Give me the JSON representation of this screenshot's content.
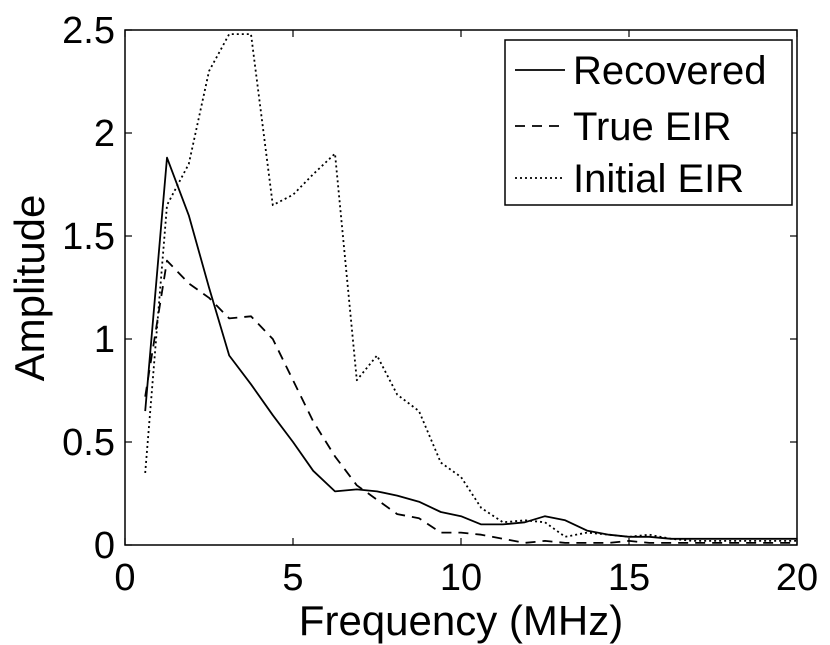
{
  "chart_data": {
    "type": "line",
    "title": "",
    "xlabel": "Frequency (MHz)",
    "ylabel": "Amplitude",
    "xlim": [
      0,
      20
    ],
    "ylim": [
      0,
      2.5
    ],
    "xticks": [
      "0",
      "5",
      "10",
      "15",
      "20"
    ],
    "yticks": [
      "0",
      "0.5",
      "1",
      "1.5",
      "2",
      "2.5"
    ],
    "grid": false,
    "legend_position": "top-right",
    "series": [
      {
        "name": "Recovered",
        "style": "solid",
        "color": "#000000",
        "x": [
          0.6,
          1.25,
          1.9,
          2.5,
          3.1,
          3.75,
          4.4,
          5.0,
          5.6,
          6.25,
          6.9,
          7.5,
          8.1,
          8.75,
          9.4,
          10.0,
          10.6,
          11.25,
          11.9,
          12.5,
          13.1,
          13.75,
          14.4,
          15.0,
          15.6,
          16.25,
          16.9,
          17.5,
          18.1,
          18.75,
          19.4,
          20.0
        ],
        "y": [
          0.65,
          1.88,
          1.6,
          1.25,
          0.92,
          0.78,
          0.63,
          0.5,
          0.36,
          0.26,
          0.27,
          0.26,
          0.24,
          0.21,
          0.16,
          0.14,
          0.1,
          0.1,
          0.11,
          0.14,
          0.12,
          0.07,
          0.05,
          0.04,
          0.04,
          0.03,
          0.03,
          0.03,
          0.03,
          0.03,
          0.03,
          0.03
        ]
      },
      {
        "name": "True EIR",
        "style": "dashed",
        "color": "#000000",
        "x": [
          0.6,
          1.25,
          1.9,
          2.5,
          3.1,
          3.75,
          4.4,
          5.0,
          5.6,
          6.25,
          6.9,
          7.5,
          8.1,
          8.75,
          9.4,
          10.0,
          10.6,
          11.25,
          11.9,
          12.5,
          13.1,
          13.75,
          14.4,
          15.0,
          15.6,
          16.25,
          16.9,
          17.5,
          18.1,
          18.75,
          19.4,
          20.0
        ],
        "y": [
          0.72,
          1.38,
          1.27,
          1.2,
          1.1,
          1.11,
          1.0,
          0.8,
          0.6,
          0.43,
          0.29,
          0.22,
          0.15,
          0.13,
          0.06,
          0.06,
          0.05,
          0.03,
          0.01,
          0.02,
          0.01,
          0.01,
          0.01,
          0.02,
          0.01,
          0.01,
          0.01,
          0.01,
          0.01,
          0.01,
          0.01,
          0.01
        ]
      },
      {
        "name": "Initial EIR",
        "style": "dotted",
        "color": "#000000",
        "x": [
          0.6,
          1.25,
          1.9,
          2.5,
          3.1,
          3.75,
          4.4,
          5.0,
          5.6,
          6.25,
          6.9,
          7.5,
          8.1,
          8.75,
          9.4,
          10.0,
          10.6,
          11.25,
          11.9,
          12.5,
          13.1,
          13.75,
          14.4,
          15.0,
          15.6,
          16.25,
          16.9,
          17.5,
          18.1,
          18.75,
          19.4,
          20.0
        ],
        "y": [
          0.35,
          1.65,
          1.85,
          2.3,
          2.48,
          2.48,
          1.65,
          1.7,
          1.8,
          1.9,
          0.8,
          0.92,
          0.73,
          0.65,
          0.4,
          0.33,
          0.18,
          0.11,
          0.12,
          0.11,
          0.04,
          0.06,
          0.05,
          0.04,
          0.05,
          0.03,
          0.02,
          0.02,
          0.02,
          0.02,
          0.02,
          0.02
        ]
      }
    ]
  }
}
